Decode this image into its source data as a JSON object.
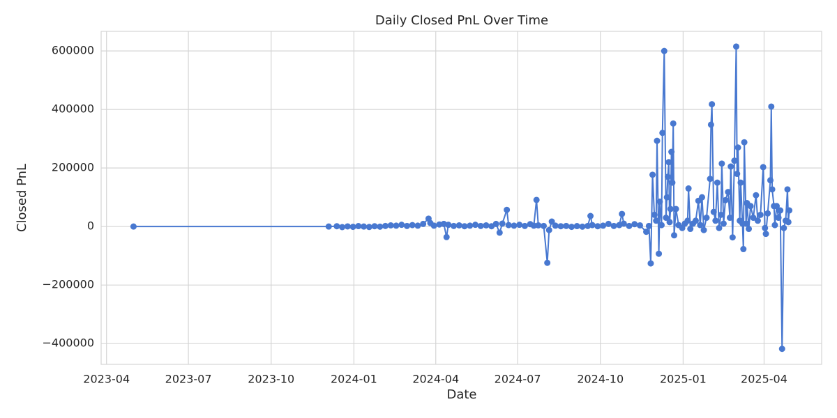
{
  "chart_data": {
    "type": "line",
    "title": "Daily Closed PnL Over Time",
    "x_label": "Date",
    "y_label": "Closed PnL",
    "color": "#4878d0",
    "grid": true,
    "x": [
      "2023-05-01",
      "2023-12-04",
      "2023-12-13",
      "2023-12-19",
      "2023-12-25",
      "2023-12-31",
      "2024-01-06",
      "2024-01-12",
      "2024-01-18",
      "2024-01-24",
      "2024-01-30",
      "2024-02-05",
      "2024-02-11",
      "2024-02-17",
      "2024-02-23",
      "2024-02-29",
      "2024-03-06",
      "2024-03-12",
      "2024-03-18",
      "2024-03-24",
      "2024-03-26",
      "2024-03-30",
      "2024-04-05",
      "2024-04-10",
      "2024-04-13",
      "2024-04-15",
      "2024-04-21",
      "2024-04-27",
      "2024-05-03",
      "2024-05-09",
      "2024-05-15",
      "2024-05-21",
      "2024-05-27",
      "2024-06-02",
      "2024-06-07",
      "2024-06-11",
      "2024-06-14",
      "2024-06-19",
      "2024-06-21",
      "2024-06-27",
      "2024-07-03",
      "2024-07-09",
      "2024-07-15",
      "2024-07-19",
      "2024-07-22",
      "2024-07-24",
      "2024-07-30",
      "2024-08-03",
      "2024-08-05",
      "2024-08-08",
      "2024-08-12",
      "2024-08-18",
      "2024-08-24",
      "2024-08-30",
      "2024-09-05",
      "2024-09-11",
      "2024-09-17",
      "2024-09-20",
      "2024-09-22",
      "2024-09-28",
      "2024-10-04",
      "2024-10-10",
      "2024-10-16",
      "2024-10-22",
      "2024-10-25",
      "2024-10-27",
      "2024-11-02",
      "2024-11-08",
      "2024-11-14",
      "2024-11-21",
      "2024-11-24",
      "2024-11-26",
      "2024-11-28",
      "2024-11-30",
      "2024-12-02",
      "2024-12-03",
      "2024-12-05",
      "2024-12-06",
      "2024-12-08",
      "2024-12-09",
      "2024-12-11",
      "2024-12-13",
      "2024-12-14",
      "2024-12-15",
      "2024-12-16",
      "2024-12-17",
      "2024-12-18",
      "2024-12-19",
      "2024-12-20",
      "2024-12-21",
      "2024-12-22",
      "2024-12-24",
      "2024-12-27",
      "2024-12-31",
      "2025-01-03",
      "2025-01-06",
      "2025-01-07",
      "2025-01-09",
      "2025-01-12",
      "2025-01-15",
      "2025-01-18",
      "2025-01-20",
      "2025-01-22",
      "2025-01-24",
      "2025-01-27",
      "2025-01-31",
      "2025-02-01",
      "2025-02-02",
      "2025-02-04",
      "2025-02-06",
      "2025-02-08",
      "2025-02-10",
      "2025-02-12",
      "2025-02-13",
      "2025-02-15",
      "2025-02-17",
      "2025-02-20",
      "2025-02-22",
      "2025-02-23",
      "2025-02-25",
      "2025-02-27",
      "2025-03-01",
      "2025-03-02",
      "2025-03-03",
      "2025-03-05",
      "2025-03-06",
      "2025-03-08",
      "2025-03-09",
      "2025-03-10",
      "2025-03-12",
      "2025-03-13",
      "2025-03-15",
      "2025-03-17",
      "2025-03-20",
      "2025-03-23",
      "2025-03-25",
      "2025-03-28",
      "2025-03-31",
      "2025-04-02",
      "2025-04-03",
      "2025-04-05",
      "2025-04-08",
      "2025-04-09",
      "2025-04-10",
      "2025-04-12",
      "2025-04-13",
      "2025-04-15",
      "2025-04-17",
      "2025-04-19",
      "2025-04-21",
      "2025-04-23",
      "2025-04-25",
      "2025-04-27",
      "2025-04-28",
      "2025-04-29"
    ],
    "values": [
      0,
      0,
      1000,
      -2000,
      500,
      -1000,
      1500,
      0,
      -1500,
      1000,
      -500,
      2000,
      4000,
      3000,
      6000,
      2000,
      5000,
      3000,
      9000,
      27000,
      12000,
      3000,
      7000,
      9000,
      -36000,
      6000,
      2000,
      4000,
      1000,
      3000,
      6000,
      2000,
      4000,
      1000,
      9000,
      -21000,
      10000,
      57000,
      5000,
      3000,
      6000,
      2000,
      8000,
      3000,
      91000,
      4000,
      2000,
      -124000,
      -12000,
      17000,
      3000,
      1000,
      2000,
      -1000,
      1500,
      -500,
      2000,
      36000,
      5000,
      1000,
      3000,
      9000,
      2000,
      5000,
      43000,
      10000,
      2000,
      8000,
      4000,
      -18000,
      2000,
      -126000,
      177000,
      40000,
      20000,
      293000,
      -93000,
      85000,
      5000,
      320000,
      600000,
      30000,
      100000,
      170000,
      220000,
      15000,
      60000,
      255000,
      150000,
      352000,
      -30000,
      60000,
      5000,
      -5000,
      10000,
      20000,
      130000,
      -8000,
      10000,
      20000,
      88000,
      5000,
      100000,
      -12000,
      30000,
      163000,
      348000,
      418000,
      50000,
      20000,
      150000,
      -5000,
      40000,
      215000,
      10000,
      90000,
      118000,
      30000,
      205000,
      -37000,
      225000,
      615000,
      180000,
      270000,
      20000,
      150000,
      10000,
      -77000,
      288000,
      10000,
      80000,
      -8000,
      70000,
      30000,
      107000,
      20000,
      40000,
      203000,
      -5000,
      -25000,
      45000,
      158000,
      410000,
      127000,
      70000,
      5000,
      70000,
      30000,
      55000,
      -418000,
      -5000,
      20000,
      127000,
      15000,
      55000
    ],
    "xlim": [
      "2023-03-26",
      "2025-06-04"
    ],
    "xticks": [
      {
        "value": "2023-04-01",
        "label": "2023-04"
      },
      {
        "value": "2023-07-01",
        "label": "2023-07"
      },
      {
        "value": "2023-10-01",
        "label": "2023-10"
      },
      {
        "value": "2024-01-01",
        "label": "2024-01"
      },
      {
        "value": "2024-04-01",
        "label": "2024-04"
      },
      {
        "value": "2024-07-01",
        "label": "2024-07"
      },
      {
        "value": "2024-10-01",
        "label": "2024-10"
      },
      {
        "value": "2025-01-01",
        "label": "2025-01"
      },
      {
        "value": "2025-04-01",
        "label": "2025-04"
      }
    ],
    "ylim": [
      -471000,
      667000
    ],
    "yticks": [
      {
        "value": -400000,
        "label": "−400000"
      },
      {
        "value": -200000,
        "label": "−200000"
      },
      0,
      200000,
      400000,
      600000
    ]
  }
}
